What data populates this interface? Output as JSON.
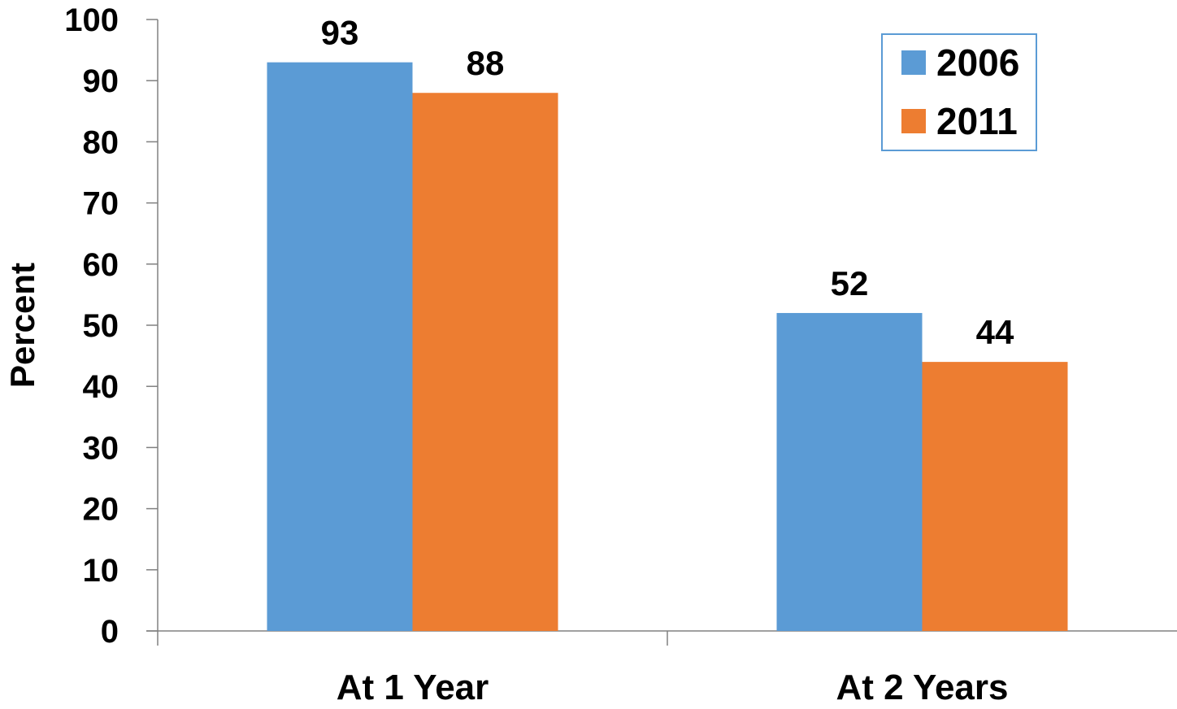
{
  "chart_data": {
    "type": "bar",
    "categories": [
      "At 1 Year",
      "At 2 Years"
    ],
    "series": [
      {
        "name": "2006",
        "values": [
          93,
          52
        ],
        "color": "#5B9BD5"
      },
      {
        "name": "2011",
        "values": [
          88,
          44
        ],
        "color": "#ED7D31"
      }
    ],
    "title": "",
    "xlabel": "",
    "ylabel": "Percent",
    "ylim": [
      0,
      100
    ],
    "yticks": [
      0,
      10,
      20,
      30,
      40,
      50,
      60,
      70,
      80,
      90,
      100
    ],
    "grid": false,
    "legend": "top-right",
    "legend_border_color": "#5B9BD5",
    "axis_color": "#808080"
  }
}
